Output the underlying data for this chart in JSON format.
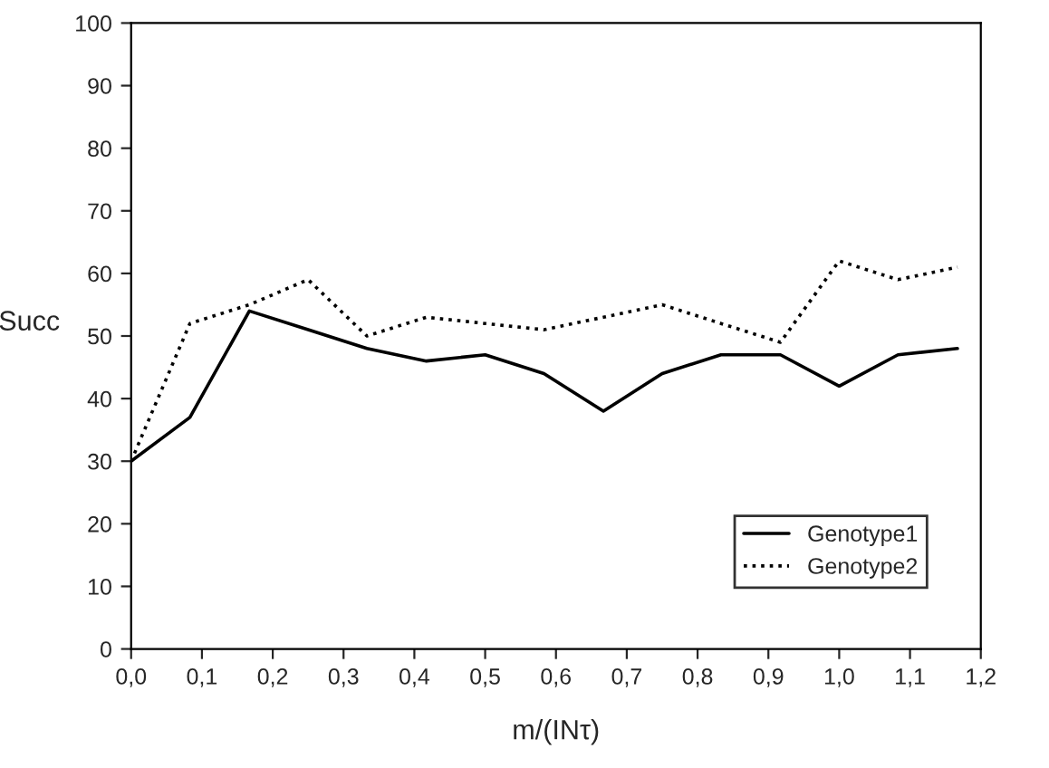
{
  "chart_data": {
    "type": "line",
    "xlabel": "m/(INτ)",
    "ylabel": "Succ",
    "x": [
      0,
      0.083,
      0.167,
      0.25,
      0.333,
      0.417,
      0.5,
      0.583,
      0.667,
      0.75,
      0.833,
      0.917,
      1.0,
      1.083,
      1.167
    ],
    "series": [
      {
        "name": "Genotype1",
        "color": "#000000",
        "line_style": "solid",
        "values": [
          30,
          37,
          54,
          51,
          48,
          46,
          47,
          44,
          38,
          44,
          47,
          47,
          42,
          47,
          48
        ]
      },
      {
        "name": "Genotype2",
        "color": "#000000",
        "line_style": "dotted",
        "values": [
          30,
          52,
          55,
          59,
          50,
          53,
          52,
          51,
          53,
          55,
          52,
          49,
          62,
          59,
          61
        ]
      }
    ],
    "xlim": [
      0,
      1.2
    ],
    "xticks": [
      {
        "value": 0,
        "label": "0,0"
      },
      {
        "value": 0.1,
        "label": "0,1"
      },
      {
        "value": 0.2,
        "label": "0,2"
      },
      {
        "value": 0.3,
        "label": "0,3"
      },
      {
        "value": 0.4,
        "label": "0,4"
      },
      {
        "value": 0.5,
        "label": "0,5"
      },
      {
        "value": 0.6,
        "label": "0,6"
      },
      {
        "value": 0.7,
        "label": "0,7"
      },
      {
        "value": 0.8,
        "label": "0,8"
      },
      {
        "value": 0.9,
        "label": "0,9"
      },
      {
        "value": 1.0,
        "label": "1,0"
      },
      {
        "value": 1.1,
        "label": "1,1"
      },
      {
        "value": 1.2,
        "label": "1,2"
      }
    ],
    "ylim": [
      0,
      100
    ],
    "yticks": [
      0,
      10,
      20,
      30,
      40,
      50,
      60,
      70,
      80,
      90,
      100
    ],
    "grid": false,
    "legend": "bottom right",
    "marker": "none"
  }
}
